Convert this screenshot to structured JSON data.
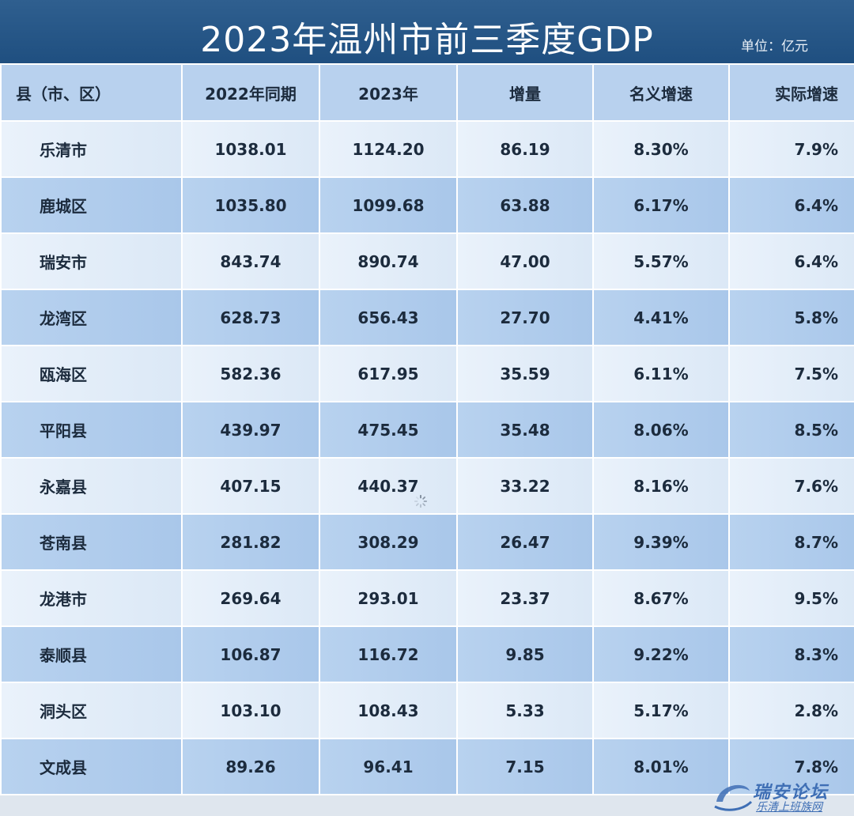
{
  "header": {
    "title": "2023年温州市前三季度GDP",
    "unit": "单位：亿元"
  },
  "table": {
    "columns": [
      "县（市、区）",
      "2022年同期",
      "2023年",
      "增量",
      "名义增速",
      "实际增速"
    ],
    "rows": [
      [
        "乐清市",
        "1038.01",
        "1124.20",
        "86.19",
        "8.30%",
        "7.9%"
      ],
      [
        "鹿城区",
        "1035.80",
        "1099.68",
        "63.88",
        "6.17%",
        "6.4%"
      ],
      [
        "瑞安市",
        "843.74",
        "890.74",
        "47.00",
        "5.57%",
        "6.4%"
      ],
      [
        "龙湾区",
        "628.73",
        "656.43",
        "27.70",
        "4.41%",
        "5.8%"
      ],
      [
        "瓯海区",
        "582.36",
        "617.95",
        "35.59",
        "6.11%",
        "7.5%"
      ],
      [
        "平阳县",
        "439.97",
        "475.45",
        "35.48",
        "8.06%",
        "8.5%"
      ],
      [
        "永嘉县",
        "407.15",
        "440.37",
        "33.22",
        "8.16%",
        "7.6%"
      ],
      [
        "苍南县",
        "281.82",
        "308.29",
        "26.47",
        "9.39%",
        "8.7%"
      ],
      [
        "龙港市",
        "269.64",
        "293.01",
        "23.37",
        "8.67%",
        "9.5%"
      ],
      [
        "泰顺县",
        "106.87",
        "116.72",
        "9.85",
        "9.22%",
        "8.3%"
      ],
      [
        "洞头区",
        "103.10",
        "108.43",
        "5.33",
        "5.17%",
        "2.8%"
      ],
      [
        "文成县",
        "89.26",
        "96.41",
        "7.15",
        "8.01%",
        "7.8%"
      ]
    ]
  },
  "watermark": {
    "main": "瑞安论坛",
    "sub": "乐清上班族网"
  },
  "icons": [
    "loading-spinner-icon",
    "watermark-logo-icon"
  ]
}
